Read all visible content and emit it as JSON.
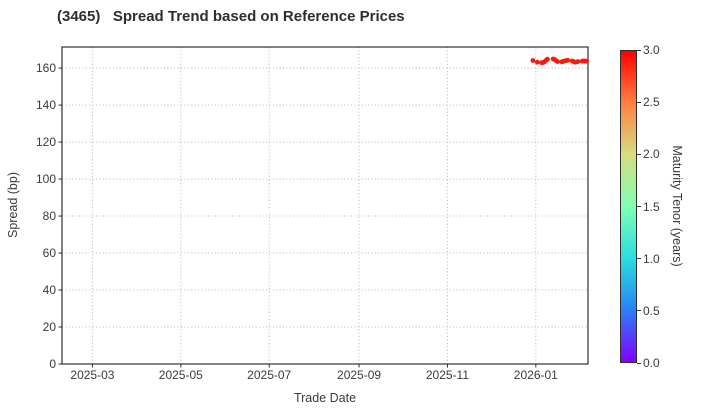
{
  "chart_data": {
    "type": "scatter",
    "title": "(3465)   Spread Trend based on Reference Prices",
    "xlabel": "Trade Date",
    "ylabel": "Spread (bp)",
    "colorbar_label": "Maturity Tenor (years)",
    "grid": true,
    "x_range": [
      "2025-02-08",
      "2026-02-06"
    ],
    "x_ticks": [
      {
        "value": "2025-03-01",
        "label": "2025-03"
      },
      {
        "value": "2025-05-01",
        "label": "2025-05"
      },
      {
        "value": "2025-07-01",
        "label": "2025-07"
      },
      {
        "value": "2025-09-01",
        "label": "2025-09"
      },
      {
        "value": "2025-11-01",
        "label": "2025-11"
      },
      {
        "value": "2026-01-01",
        "label": "2026-01"
      }
    ],
    "y_range": [
      0,
      171.4
    ],
    "y_ticks": [
      0,
      20,
      40,
      60,
      80,
      100,
      120,
      140,
      160
    ],
    "colorbar": {
      "min": 0.0,
      "max": 3.0,
      "tick_labels": [
        "0.0",
        "0.5",
        "1.0",
        "1.5",
        "2.0",
        "2.5",
        "3.0"
      ],
      "tick_values": [
        0,
        0.5,
        1.0,
        1.5,
        2.0,
        2.5,
        3.0
      ],
      "gradient_stops": [
        {
          "t": 0.0,
          "color": "#8000ff"
        },
        {
          "t": 0.167,
          "color": "#2b80f6"
        },
        {
          "t": 0.333,
          "color": "#2bdddd"
        },
        {
          "t": 0.5,
          "color": "#80ffb4"
        },
        {
          "t": 0.667,
          "color": "#d5dd80"
        },
        {
          "t": 0.833,
          "color": "#ff8042"
        },
        {
          "t": 1.0,
          "color": "#ff0000"
        }
      ]
    },
    "point_color": "#f21c0d",
    "marker_radius": 2.4,
    "points": [
      {
        "date": "2025-12-30",
        "spread_bp": 164.1,
        "tenor_years": 3.0
      },
      {
        "date": "2026-01-02",
        "spread_bp": 163.2,
        "tenor_years": 3.0
      },
      {
        "date": "2026-01-05",
        "spread_bp": 162.9,
        "tenor_years": 3.0
      },
      {
        "date": "2026-01-06",
        "spread_bp": 163.0,
        "tenor_years": 3.0
      },
      {
        "date": "2026-01-07",
        "spread_bp": 163.4,
        "tenor_years": 3.0
      },
      {
        "date": "2026-01-08",
        "spread_bp": 164.2,
        "tenor_years": 3.0
      },
      {
        "date": "2026-01-09",
        "spread_bp": 164.8,
        "tenor_years": 3.0
      },
      {
        "date": "2026-01-13",
        "spread_bp": 164.9,
        "tenor_years": 3.0
      },
      {
        "date": "2026-01-14",
        "spread_bp": 164.6,
        "tenor_years": 3.0
      },
      {
        "date": "2026-01-15",
        "spread_bp": 164.0,
        "tenor_years": 3.0
      },
      {
        "date": "2026-01-16",
        "spread_bp": 163.5,
        "tenor_years": 3.0
      },
      {
        "date": "2026-01-19",
        "spread_bp": 163.4,
        "tenor_years": 3.0
      },
      {
        "date": "2026-01-20",
        "spread_bp": 163.6,
        "tenor_years": 3.0
      },
      {
        "date": "2026-01-21",
        "spread_bp": 163.9,
        "tenor_years": 3.0
      },
      {
        "date": "2026-01-22",
        "spread_bp": 164.1,
        "tenor_years": 3.0
      },
      {
        "date": "2026-01-23",
        "spread_bp": 164.2,
        "tenor_years": 3.0
      },
      {
        "date": "2026-01-26",
        "spread_bp": 163.9,
        "tenor_years": 3.0
      },
      {
        "date": "2026-01-27",
        "spread_bp": 163.5,
        "tenor_years": 3.0
      },
      {
        "date": "2026-01-28",
        "spread_bp": 163.2,
        "tenor_years": 3.0
      },
      {
        "date": "2026-01-29",
        "spread_bp": 163.3,
        "tenor_years": 3.0
      },
      {
        "date": "2026-01-30",
        "spread_bp": 163.5,
        "tenor_years": 3.0
      },
      {
        "date": "2026-02-02",
        "spread_bp": 163.7,
        "tenor_years": 3.0
      },
      {
        "date": "2026-02-03",
        "spread_bp": 163.9,
        "tenor_years": 3.0
      },
      {
        "date": "2026-02-04",
        "spread_bp": 163.8,
        "tenor_years": 3.0
      },
      {
        "date": "2026-02-05",
        "spread_bp": 163.8,
        "tenor_years": 3.0
      }
    ],
    "colors": {
      "spine": "#2f2f2f",
      "gridline": "#b5b5b5",
      "text": "#3a3a3a",
      "background": "#ffffff"
    }
  }
}
